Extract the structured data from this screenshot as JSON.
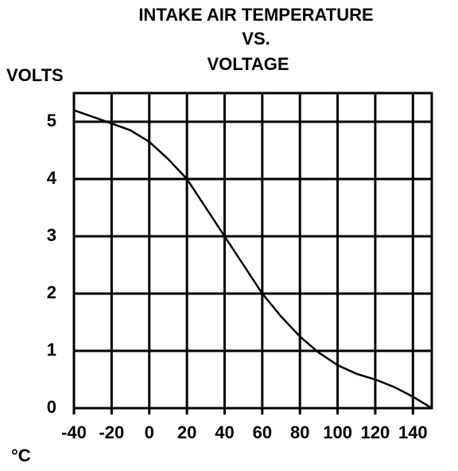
{
  "chart_data": {
    "type": "line",
    "title": [
      "INTAKE AIR TEMPERATURE",
      "VS.",
      "VOLTAGE"
    ],
    "y_label": "VOLTS",
    "x_label": "°C",
    "x": [
      -40,
      -20,
      -10,
      0,
      10,
      20,
      30,
      40,
      50,
      60,
      70,
      80,
      90,
      100,
      110,
      120,
      130,
      140,
      150
    ],
    "series": [
      {
        "color": "#000000",
        "values": [
          5.2,
          4.97,
          4.85,
          4.65,
          4.35,
          4.0,
          3.5,
          3.0,
          2.5,
          2.0,
          1.6,
          1.25,
          0.97,
          0.75,
          0.6,
          0.5,
          0.37,
          0.2,
          0
        ]
      }
    ],
    "xlim": [
      -40,
      150
    ],
    "ylim": [
      0,
      5.5
    ],
    "xticks": [
      -40,
      -20,
      0,
      20,
      40,
      60,
      80,
      100,
      120,
      140
    ],
    "yticks": [
      0,
      1,
      2,
      3,
      4,
      5
    ],
    "grid": true
  }
}
